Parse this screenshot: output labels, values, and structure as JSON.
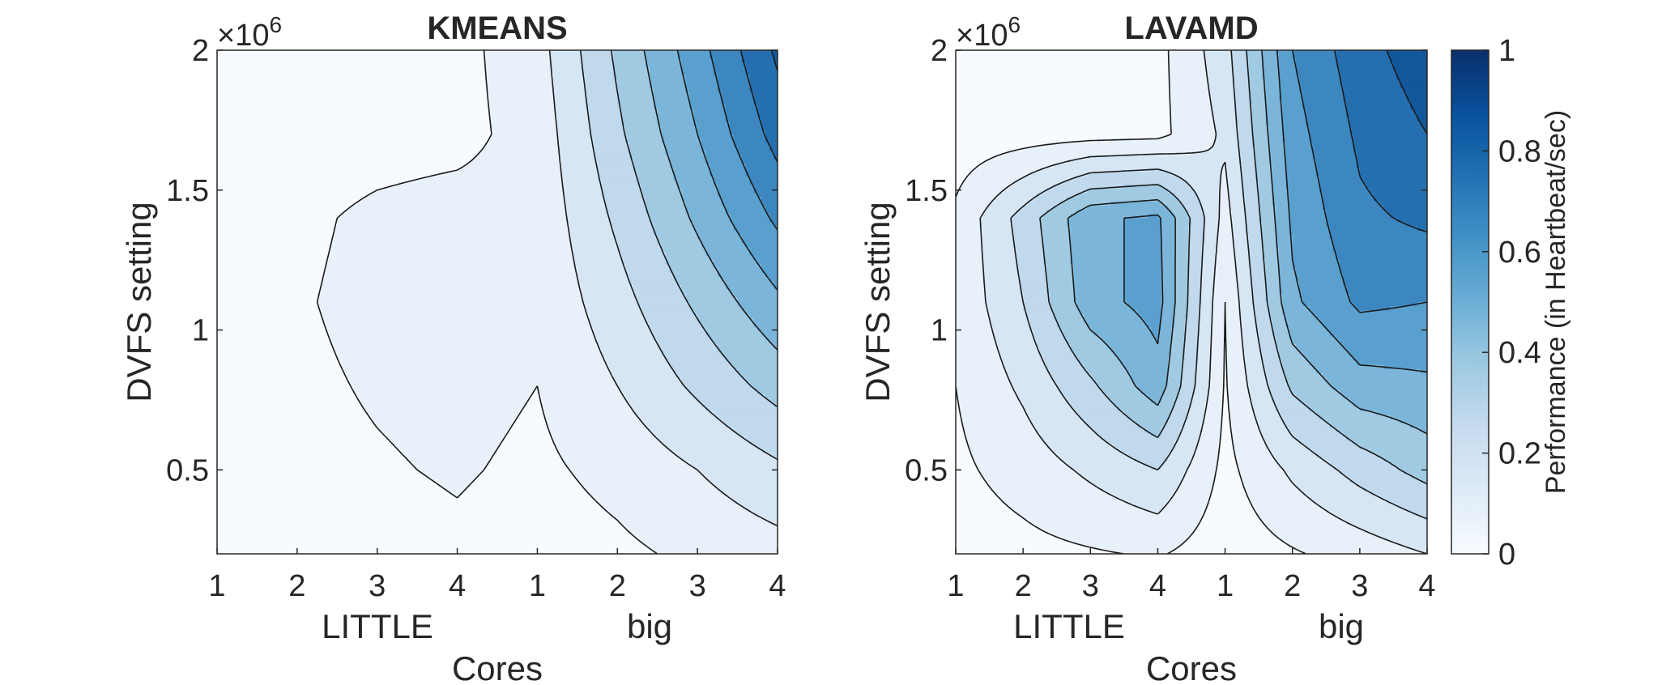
{
  "chart_data": [
    {
      "type": "contour",
      "title": "KMEANS",
      "xlabel": "Cores",
      "xgroup_labels": [
        "LITTLE",
        "big"
      ],
      "x_ticks": [
        "1",
        "2",
        "3",
        "4",
        "1",
        "2",
        "3",
        "4"
      ],
      "ylabel": "DVFS setting",
      "y_ticks": [
        "0.5",
        "1",
        "1.5",
        "2"
      ],
      "y_exponent": "×10",
      "y_exponent_power": "6",
      "ylim": [
        200000,
        2000000
      ],
      "levels": [
        0,
        0.1,
        0.2,
        0.3,
        0.4,
        0.5,
        0.6,
        0.7,
        0.8,
        0.9,
        1.0
      ],
      "z_columns": [
        "LITTLE 1",
        "LITTLE 2",
        "LITTLE 3",
        "LITTLE 4",
        "big 1",
        "big 2",
        "big 3",
        "big 4"
      ],
      "z_rows_dvfs": [
        200000,
        500000,
        800000,
        1100000,
        1400000,
        1700000,
        2000000
      ],
      "z": [
        [
          0.04,
          0.05,
          0.06,
          0.08,
          0.05,
          0.08,
          0.12,
          0.16
        ],
        [
          0.05,
          0.07,
          0.09,
          0.11,
          0.08,
          0.13,
          0.2,
          0.28
        ],
        [
          0.06,
          0.08,
          0.11,
          0.13,
          0.1,
          0.2,
          0.32,
          0.44
        ],
        [
          0.07,
          0.09,
          0.13,
          0.15,
          0.12,
          0.26,
          0.42,
          0.58
        ],
        [
          0.05,
          0.08,
          0.12,
          0.14,
          0.13,
          0.32,
          0.52,
          0.72
        ],
        [
          0.04,
          0.05,
          0.06,
          0.07,
          0.14,
          0.38,
          0.6,
          0.84
        ],
        [
          0.04,
          0.05,
          0.06,
          0.07,
          0.16,
          0.42,
          0.66,
          0.92
        ]
      ]
    },
    {
      "type": "contour",
      "title": "LAVAMD",
      "xlabel": "Cores",
      "xgroup_labels": [
        "LITTLE",
        "big"
      ],
      "x_ticks": [
        "1",
        "2",
        "3",
        "4",
        "1",
        "2",
        "3",
        "4"
      ],
      "ylabel": "DVFS setting",
      "y_ticks": [
        "0.5",
        "1",
        "1.5",
        "2"
      ],
      "y_exponent": "×10",
      "y_exponent_power": "6",
      "ylim": [
        200000,
        2000000
      ],
      "levels": [
        0,
        0.1,
        0.2,
        0.3,
        0.4,
        0.5,
        0.6,
        0.7,
        0.8,
        0.9,
        1.0
      ],
      "z_columns": [
        "LITTLE 1",
        "LITTLE 2",
        "LITTLE 3",
        "LITTLE 4",
        "big 1",
        "big 2",
        "big 3",
        "big 4"
      ],
      "z_rows_dvfs": [
        200000,
        500000,
        800000,
        1100000,
        1400000,
        1700000,
        2000000
      ],
      "z": [
        [
          0.05,
          0.07,
          0.09,
          0.11,
          0.04,
          0.09,
          0.14,
          0.2
        ],
        [
          0.08,
          0.14,
          0.22,
          0.3,
          0.07,
          0.22,
          0.34,
          0.44
        ],
        [
          0.1,
          0.22,
          0.38,
          0.56,
          0.09,
          0.42,
          0.56,
          0.58
        ],
        [
          0.12,
          0.3,
          0.56,
          0.64,
          0.1,
          0.58,
          0.72,
          0.7
        ],
        [
          0.12,
          0.34,
          0.58,
          0.62,
          0.16,
          0.62,
          0.78,
          0.82
        ],
        [
          0.04,
          0.05,
          0.06,
          0.07,
          0.22,
          0.66,
          0.82,
          0.9
        ],
        [
          0.04,
          0.05,
          0.06,
          0.07,
          0.26,
          0.7,
          0.86,
          0.96
        ]
      ]
    }
  ],
  "colorbar": {
    "label": "Performance (in Heartbeat/sec)",
    "ticks": [
      "0",
      "0.2",
      "0.4",
      "0.6",
      "0.8",
      "1"
    ],
    "min": 0,
    "max": 1,
    "color_low": "#f7fbff",
    "color_high": "#08306b"
  }
}
